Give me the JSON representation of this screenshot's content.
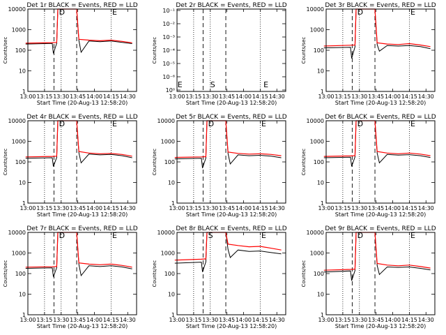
{
  "chart_data": [
    {
      "type": "line",
      "title": "Det 1r BLACK = Events, RED = LLD",
      "xlabel": "Start Time (20-Aug-13 12:58:20)",
      "ylabel": "Counts/sec",
      "yscale": "log",
      "ylim": [
        1,
        10000
      ],
      "yticks": [
        "1",
        "10",
        "100",
        "1000",
        "10000"
      ],
      "xlim": [
        "13:00",
        "14:38"
      ],
      "xticks": [
        "13:00",
        "13:15",
        "13:30",
        "13:45",
        "14:00",
        "14:15",
        "14:30"
      ],
      "letters": [
        "D",
        "E"
      ],
      "series": [
        {
          "color": "#000000",
          "x": [
            "12:58",
            "13:22",
            "13:23",
            "13:26",
            "13:27",
            "13:44",
            "13:46",
            "13:48",
            "13:55",
            "14:05",
            "14:15",
            "14:25",
            "14:34"
          ],
          "y": [
            200,
            215,
            70,
            220,
            10000,
            10000,
            300,
            80,
            280,
            260,
            280,
            240,
            210
          ]
        },
        {
          "color": "#ff0000",
          "x": [
            "12:58",
            "13:22",
            "13:26",
            "13:27",
            "13:44",
            "13:46",
            "13:55",
            "14:05",
            "14:15",
            "14:25",
            "14:34"
          ],
          "y": [
            220,
            235,
            240,
            10000,
            10000,
            340,
            310,
            290,
            310,
            270,
            230
          ]
        }
      ]
    },
    {
      "type": "line",
      "title": "Det 2r BLACK = Events, RED = LLD",
      "xlabel": "Start Time (20-Aug-13 12:58:20)",
      "ylabel": "Counts/sec",
      "yscale": "log",
      "ylim": [
        1,
        1000000
      ],
      "yticks": [
        "10⁻¹",
        "10⁻²",
        "10⁻³",
        "10⁻⁴",
        "10⁻⁵",
        "10⁻⁶",
        "10⁰"
      ],
      "xlim": [
        "13:00",
        "14:38"
      ],
      "xticks": [
        "13:00",
        "13:15",
        "13:30",
        "13:45",
        "14:00",
        "14:15",
        "14:30"
      ],
      "letters": [
        "E",
        "S",
        "E"
      ],
      "series": []
    },
    {
      "type": "line",
      "title": "Det 3r BLACK = Events, RED = LLD",
      "xlabel": "Start Time (20-Aug-13 12:58:20)",
      "ylabel": "Counts/sec",
      "yscale": "log",
      "ylim": [
        1,
        10000
      ],
      "yticks": [
        "1",
        "10",
        "100",
        "1000",
        "10000"
      ],
      "xlim": [
        "13:00",
        "14:38"
      ],
      "xticks": [
        "13:00",
        "13:15",
        "13:30",
        "13:45",
        "14:00",
        "14:15",
        "14:30"
      ],
      "letters": [
        "D",
        "E"
      ],
      "series": [
        {
          "color": "#000000",
          "x": [
            "12:58",
            "13:22",
            "13:23",
            "13:26",
            "13:27",
            "13:44",
            "13:46",
            "13:48",
            "13:55",
            "14:05",
            "14:15",
            "14:25",
            "14:34"
          ],
          "y": [
            130,
            140,
            40,
            145,
            10000,
            10000,
            190,
            90,
            170,
            160,
            170,
            150,
            120
          ]
        },
        {
          "color": "#ff0000",
          "x": [
            "12:58",
            "13:22",
            "13:26",
            "13:27",
            "13:44",
            "13:46",
            "13:55",
            "14:05",
            "14:15",
            "14:25",
            "14:34"
          ],
          "y": [
            160,
            175,
            180,
            10000,
            10000,
            230,
            200,
            190,
            210,
            180,
            150
          ]
        }
      ]
    },
    {
      "type": "line",
      "title": "Det 4r BLACK = Events, RED = LLD",
      "xlabel": "Start Time (20-Aug-13 12:58:20)",
      "ylabel": "Counts/sec",
      "yscale": "log",
      "ylim": [
        1,
        10000
      ],
      "yticks": [
        "1",
        "10",
        "100",
        "1000",
        "10000"
      ],
      "xlim": [
        "13:00",
        "14:38"
      ],
      "xticks": [
        "13:00",
        "13:15",
        "13:30",
        "13:45",
        "14:00",
        "14:15",
        "14:30"
      ],
      "letters": [
        "D",
        "E"
      ],
      "series": [
        {
          "color": "#000000",
          "x": [
            "12:58",
            "13:22",
            "13:23",
            "13:26",
            "13:27",
            "13:44",
            "13:46",
            "13:48",
            "13:55",
            "14:05",
            "14:15",
            "14:25",
            "14:34"
          ],
          "y": [
            150,
            160,
            60,
            165,
            10000,
            10000,
            280,
            90,
            240,
            220,
            230,
            200,
            160
          ]
        },
        {
          "color": "#ff0000",
          "x": [
            "12:58",
            "13:22",
            "13:26",
            "13:27",
            "13:44",
            "13:46",
            "13:55",
            "14:05",
            "14:15",
            "14:25",
            "14:34"
          ],
          "y": [
            175,
            185,
            190,
            10000,
            10000,
            320,
            270,
            250,
            260,
            230,
            190
          ]
        }
      ]
    },
    {
      "type": "line",
      "title": "Det 5r BLACK = Events, RED = LLD",
      "xlabel": "Start Time (20-Aug-13 12:58:20)",
      "ylabel": "Counts/sec",
      "yscale": "log",
      "ylim": [
        1,
        10000
      ],
      "yticks": [
        "1",
        "10",
        "100",
        "1000",
        "10000"
      ],
      "xlim": [
        "13:00",
        "14:38"
      ],
      "xticks": [
        "13:00",
        "13:15",
        "13:30",
        "13:45",
        "14:00",
        "14:15",
        "14:30"
      ],
      "letters": [
        "D",
        "E"
      ],
      "series": [
        {
          "color": "#000000",
          "x": [
            "12:58",
            "13:22",
            "13:23",
            "13:26",
            "13:27",
            "13:44",
            "13:46",
            "13:48",
            "13:55",
            "14:05",
            "14:15",
            "14:25",
            "14:34"
          ],
          "y": [
            140,
            150,
            50,
            155,
            10000,
            10000,
            260,
            80,
            220,
            200,
            210,
            190,
            160
          ]
        },
        {
          "color": "#ff0000",
          "x": [
            "12:58",
            "13:22",
            "13:26",
            "13:27",
            "13:44",
            "13:46",
            "13:55",
            "14:05",
            "14:15",
            "14:25",
            "14:34"
          ],
          "y": [
            165,
            175,
            180,
            10000,
            10000,
            300,
            260,
            240,
            250,
            230,
            200
          ]
        }
      ]
    },
    {
      "type": "line",
      "title": "Det 6r BLACK = Events, RED = LLD",
      "xlabel": "Start Time (20-Aug-13 12:58:20)",
      "ylabel": "Counts/sec",
      "yscale": "log",
      "ylim": [
        1,
        10000
      ],
      "yticks": [
        "1",
        "10",
        "100",
        "1000",
        "10000"
      ],
      "xlim": [
        "13:00",
        "14:38"
      ],
      "xticks": [
        "13:00",
        "13:15",
        "13:30",
        "13:45",
        "14:00",
        "14:15",
        "14:30"
      ],
      "letters": [
        "D",
        "E"
      ],
      "series": [
        {
          "color": "#000000",
          "x": [
            "12:58",
            "13:22",
            "13:23",
            "13:26",
            "13:27",
            "13:44",
            "13:46",
            "13:48",
            "13:55",
            "14:05",
            "14:15",
            "14:25",
            "14:34"
          ],
          "y": [
            160,
            170,
            60,
            175,
            10000,
            10000,
            270,
            90,
            230,
            215,
            225,
            200,
            165
          ]
        },
        {
          "color": "#ff0000",
          "x": [
            "12:58",
            "13:22",
            "13:26",
            "13:27",
            "13:44",
            "13:46",
            "13:55",
            "14:05",
            "14:15",
            "14:25",
            "14:34"
          ],
          "y": [
            185,
            195,
            200,
            10000,
            10000,
            320,
            270,
            250,
            270,
            240,
            200
          ]
        }
      ]
    },
    {
      "type": "line",
      "title": "Det 7r BLACK = Events, RED = LLD",
      "xlabel": "Start Time (20-Aug-13 12:58:20)",
      "ylabel": "Counts/sec",
      "yscale": "log",
      "ylim": [
        1,
        10000
      ],
      "yticks": [
        "1",
        "10",
        "100",
        "1000",
        "10000"
      ],
      "xlim": [
        "13:00",
        "14:38"
      ],
      "xticks": [
        "13:00",
        "13:15",
        "13:30",
        "13:45",
        "14:00",
        "14:15",
        "14:30"
      ],
      "letters": [
        "D",
        "E"
      ],
      "series": [
        {
          "color": "#000000",
          "x": [
            "12:58",
            "13:22",
            "13:23",
            "13:26",
            "13:27",
            "13:44",
            "13:46",
            "13:48",
            "13:55",
            "14:05",
            "14:15",
            "14:25",
            "14:34"
          ],
          "y": [
            180,
            190,
            70,
            195,
            10000,
            10000,
            280,
            80,
            240,
            220,
            240,
            210,
            170
          ]
        },
        {
          "color": "#ff0000",
          "x": [
            "12:58",
            "13:22",
            "13:26",
            "13:27",
            "13:44",
            "13:46",
            "13:55",
            "14:05",
            "14:15",
            "14:25",
            "14:34"
          ],
          "y": [
            205,
            215,
            220,
            10000,
            10000,
            330,
            290,
            270,
            290,
            250,
            205
          ]
        }
      ]
    },
    {
      "type": "line",
      "title": "Det 8r BLACK = Events, RED = LLD",
      "xlabel": "Start Time (20-Aug-13 12:58:20)",
      "ylabel": "Counts/sec",
      "yscale": "log",
      "ylim": [
        1,
        10000
      ],
      "yticks": [
        "1",
        "10",
        "100",
        "1000",
        "10000"
      ],
      "xlim": [
        "13:00",
        "14:38"
      ],
      "xticks": [
        "13:00",
        "13:15",
        "13:30",
        "13:45",
        "14:00",
        "14:15",
        "14:30"
      ],
      "letters": [
        "S",
        "E"
      ],
      "series": [
        {
          "color": "#000000",
          "x": [
            "12:58",
            "13:22",
            "13:23",
            "13:26",
            "13:27",
            "13:44",
            "13:46",
            "13:48",
            "13:55",
            "14:05",
            "14:15",
            "14:25",
            "14:34"
          ],
          "y": [
            320,
            360,
            120,
            370,
            10000,
            10000,
            1500,
            600,
            1400,
            1200,
            1250,
            1050,
            900
          ]
        },
        {
          "color": "#ff0000",
          "x": [
            "12:58",
            "13:22",
            "13:26",
            "13:27",
            "13:44",
            "13:46",
            "13:55",
            "14:05",
            "14:15",
            "14:25",
            "14:34"
          ],
          "y": [
            450,
            500,
            520,
            10000,
            10000,
            2700,
            2300,
            2000,
            2100,
            1700,
            1400
          ]
        }
      ]
    },
    {
      "type": "line",
      "title": "Det 9r BLACK = Events, RED = LLD",
      "xlabel": "Start Time (20-Aug-13 12:58:20)",
      "ylabel": "Counts/sec",
      "yscale": "log",
      "ylim": [
        1,
        10000
      ],
      "yticks": [
        "1",
        "10",
        "100",
        "1000",
        "10000"
      ],
      "xlim": [
        "13:00",
        "14:38"
      ],
      "xticks": [
        "13:00",
        "13:15",
        "13:30",
        "13:45",
        "14:00",
        "14:15",
        "14:30"
      ],
      "letters": [
        "D",
        "E"
      ],
      "series": [
        {
          "color": "#000000",
          "x": [
            "12:58",
            "13:22",
            "13:23",
            "13:26",
            "13:27",
            "13:44",
            "13:46",
            "13:48",
            "13:55",
            "14:05",
            "14:15",
            "14:25",
            "14:34"
          ],
          "y": [
            120,
            135,
            45,
            140,
            10000,
            10000,
            250,
            90,
            210,
            200,
            210,
            180,
            150
          ]
        },
        {
          "color": "#ff0000",
          "x": [
            "12:58",
            "13:22",
            "13:26",
            "13:27",
            "13:44",
            "13:46",
            "13:55",
            "14:05",
            "14:15",
            "14:25",
            "14:34"
          ],
          "y": [
            145,
            160,
            165,
            10000,
            10000,
            310,
            260,
            240,
            260,
            220,
            185
          ]
        }
      ]
    }
  ]
}
